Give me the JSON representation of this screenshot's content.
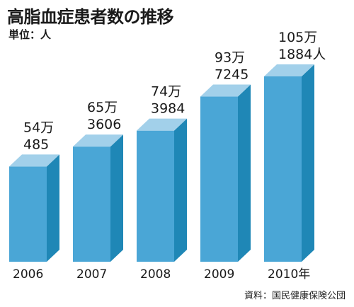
{
  "title": "高脂血症患者数の推移",
  "unit_label": "単位：人",
  "source": "資料：国民健康保険公団",
  "colors": {
    "front": "#4aa6d6",
    "side": "#1f87b6",
    "top": "#a2d0ea"
  },
  "chart_data": {
    "type": "bar",
    "categories": [
      "2006",
      "2007",
      "2008",
      "2009",
      "2010年"
    ],
    "values": [
      540485,
      653606,
      743984,
      937245,
      1051884
    ],
    "value_labels": [
      [
        "54万",
        "485"
      ],
      [
        "65万",
        "3606"
      ],
      [
        "74万",
        "3984"
      ],
      [
        "93万",
        "7245"
      ],
      [
        "105万",
        "1884人"
      ]
    ],
    "ylim": [
      0,
      1100000
    ],
    "grid": false,
    "legend": "none",
    "style": "3d-bars"
  }
}
